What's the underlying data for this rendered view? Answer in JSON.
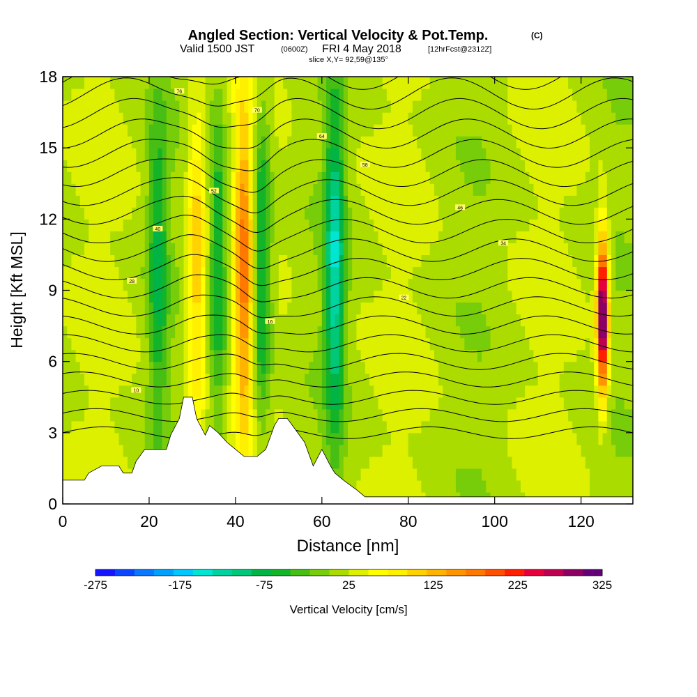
{
  "chart_data": {
    "type": "heatmap",
    "title": "Angled Section: Vertical Velocity & Pot.Temp.",
    "title_suffix": "(C)",
    "subtitle_parts": [
      "Valid 1500 JST",
      "(0600Z)",
      "FRI 4 May 2018",
      "[12hrFcst@2312Z]"
    ],
    "slice_label": "slice X,Y= 92,59@135°",
    "xlabel": "Distance [nm]",
    "ylabel": "Height [Kft MSL]",
    "xlim": [
      0,
      132
    ],
    "ylim": [
      0,
      18
    ],
    "xticks": [
      "0",
      "20",
      "40",
      "60",
      "80",
      "100",
      "120"
    ],
    "yticks": [
      "0",
      "3",
      "6",
      "9",
      "12",
      "15",
      "18"
    ],
    "colorbar": {
      "label": "Vertical Velocity [cm/s]",
      "tick_labels": [
        "-275",
        "-175",
        "-75",
        "25",
        "125",
        "225",
        "325"
      ],
      "min": -275,
      "max": 325,
      "colors": [
        "#1414ff",
        "#0a46ff",
        "#0a78ff",
        "#00a0ff",
        "#00c8ff",
        "#00e6d2",
        "#00d2a0",
        "#00c878",
        "#00b446",
        "#14b428",
        "#46be14",
        "#78cd0a",
        "#aadc00",
        "#dcf000",
        "#ffff00",
        "#fff000",
        "#ffd200",
        "#ffb400",
        "#ff9600",
        "#ff7800",
        "#ff5000",
        "#ff1e00",
        "#e6003c",
        "#be0050",
        "#8c0064",
        "#640078"
      ]
    },
    "contour_labels": [
      "76",
      "70",
      "64",
      "58",
      "52",
      "46",
      "40",
      "34",
      "28",
      "22",
      "16",
      "10"
    ],
    "velocity_features": [
      {
        "x_nm": 22,
        "kind": "downdraft",
        "peak_cms": -90
      },
      {
        "x_nm": 31,
        "kind": "updraft",
        "peak_cms": 100
      },
      {
        "x_nm": 36,
        "kind": "downdraft",
        "peak_cms": -90
      },
      {
        "x_nm": 42,
        "kind": "updraft",
        "peak_cms": 150
      },
      {
        "x_nm": 46,
        "kind": "downdraft",
        "peak_cms": -110
      },
      {
        "x_nm": 63,
        "kind": "downdraft",
        "peak_cms": -150
      },
      {
        "x_nm": 125,
        "kind": "updraft",
        "peak_cms": 325
      }
    ]
  }
}
